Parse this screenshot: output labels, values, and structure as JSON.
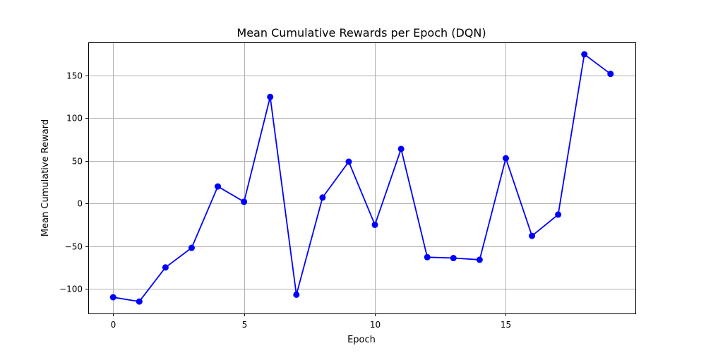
{
  "chart_data": {
    "type": "line",
    "title": "Mean Cumulative Rewards per Epoch (DQN)",
    "xlabel": "Epoch",
    "ylabel": "Mean Cumulative Reward",
    "x": [
      0,
      1,
      2,
      3,
      4,
      5,
      6,
      7,
      8,
      9,
      10,
      11,
      12,
      13,
      14,
      15,
      16,
      17,
      18,
      19
    ],
    "series": [
      {
        "values": [
          -110,
          -115,
          -75,
          -52,
          20,
          2,
          125,
          -107,
          7,
          49,
          -25,
          64,
          -63,
          -64,
          -66,
          53,
          -38,
          -13,
          175,
          152
        ],
        "color": "#0000ff",
        "marker": "circle"
      }
    ],
    "xlim": [
      -0.95,
      19.95
    ],
    "ylim": [
      -129,
      189
    ],
    "xticks": [
      0,
      5,
      10,
      15
    ],
    "xtick_labels": [
      "0",
      "5",
      "10",
      "15"
    ],
    "yticks": [
      -100,
      -50,
      0,
      50,
      100,
      150
    ],
    "ytick_labels": [
      "−100",
      "−50",
      "0",
      "50",
      "100",
      "150"
    ],
    "grid": true,
    "colors": {
      "line": "#0000ff",
      "grid": "#b0b0b0",
      "frame": "#000000"
    }
  }
}
